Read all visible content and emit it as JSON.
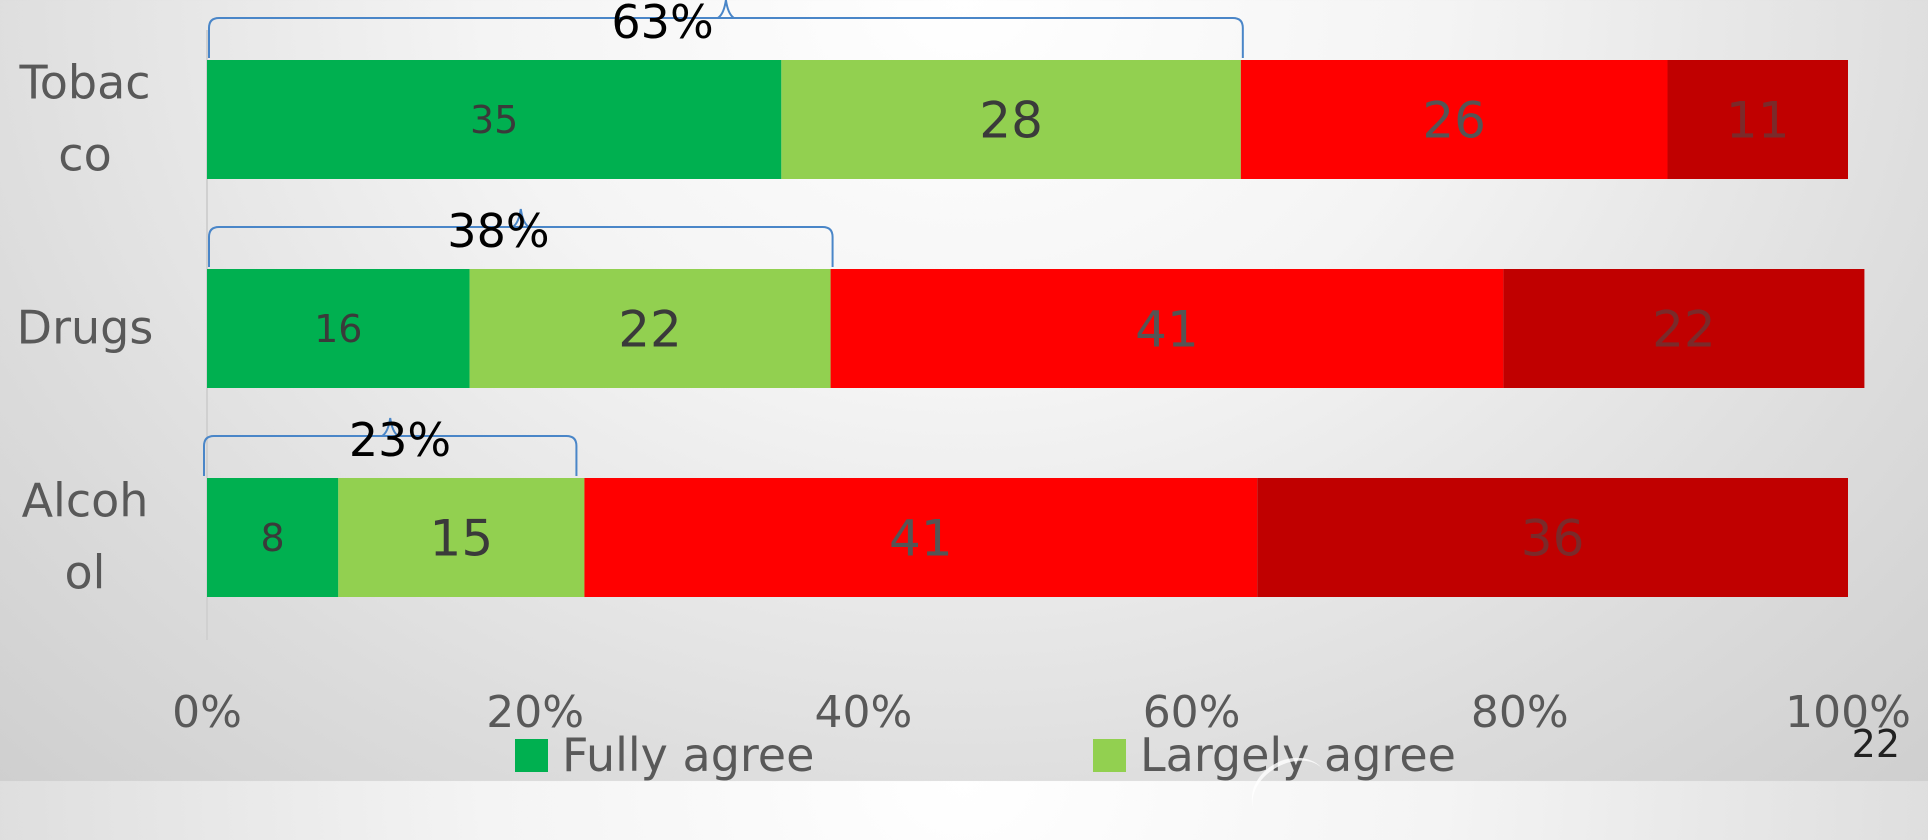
{
  "chart_data": {
    "type": "bar",
    "orientation": "horizontal",
    "stacked": "percent",
    "categories": [
      "Tobacco",
      "Drugs",
      "Alcohol"
    ],
    "category_labels_wrapped": [
      [
        "Tobac",
        "co"
      ],
      [
        "Drugs"
      ],
      [
        "Alcoh",
        "ol"
      ]
    ],
    "series": [
      {
        "name": "Fully agree",
        "color": "#00B050",
        "values": [
          35,
          16,
          8
        ],
        "label_color": "#3a3a3a"
      },
      {
        "name": "Largely agree",
        "color": "#92D050",
        "values": [
          28,
          22,
          15
        ],
        "label_color": "#3a3a3a"
      },
      {
        "name": "",
        "color": "#FF0000",
        "values": [
          26,
          41,
          41
        ],
        "label_color": "#555555"
      },
      {
        "name": "",
        "color": "#C00000",
        "values": [
          11,
          22,
          36
        ],
        "label_color": "#7a2a2a"
      }
    ],
    "data_labels": true,
    "xlim": [
      0,
      100
    ],
    "x_ticks": [
      "0%",
      "20%",
      "40%",
      "60%",
      "80%",
      "100%"
    ],
    "grid": false,
    "legend_position": "bottom",
    "annotations": [
      {
        "category": "Tobacco",
        "text": "63%",
        "span": [
          0,
          63
        ]
      },
      {
        "category": "Drugs",
        "text": "38%",
        "span": [
          0,
          38
        ]
      },
      {
        "category": "Alcohol",
        "text": "23%",
        "span": [
          0,
          23
        ]
      }
    ]
  },
  "legend": {
    "items": [
      {
        "label": "Fully agree",
        "color": "#00B050"
      },
      {
        "label": "Largely agree",
        "color": "#92D050"
      }
    ]
  },
  "slide": {
    "number": "22"
  }
}
